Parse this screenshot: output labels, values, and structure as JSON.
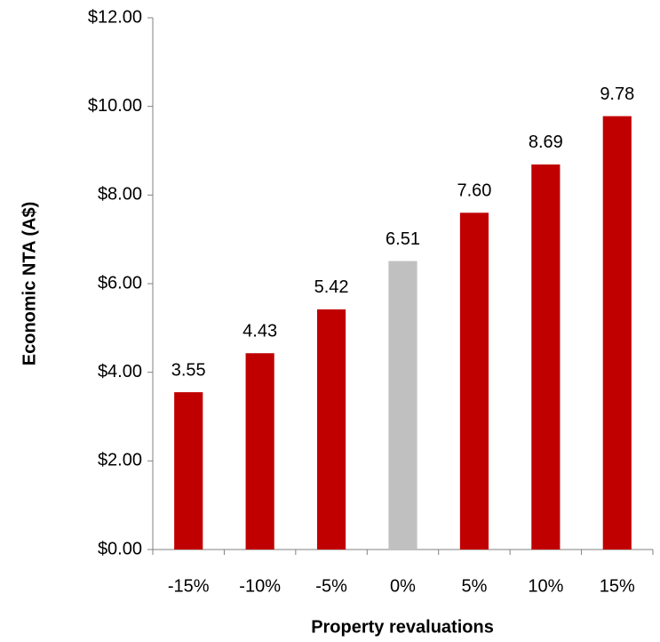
{
  "chart_data": {
    "type": "bar",
    "x_label": "Property revaluations",
    "y_label": "Economic NTA (A$)",
    "categories": [
      "-15%",
      "-10%",
      "-5%",
      "0%",
      "5%",
      "10%",
      "15%"
    ],
    "values": [
      3.55,
      4.43,
      5.42,
      6.51,
      7.6,
      8.69,
      9.78
    ],
    "value_labels": [
      "3.55",
      "4.43",
      "5.42",
      "6.51",
      "7.60",
      "8.69",
      "9.78"
    ],
    "colors": [
      "#c00000",
      "#c00000",
      "#c00000",
      "#c0c0c0",
      "#c00000",
      "#c00000",
      "#c00000"
    ],
    "ylim": [
      0,
      12
    ],
    "yticks": [
      {
        "value": 0,
        "label": "$0.00"
      },
      {
        "value": 2,
        "label": "$2.00"
      },
      {
        "value": 4,
        "label": "$4.00"
      },
      {
        "value": 6,
        "label": "$6.00"
      },
      {
        "value": 8,
        "label": "$8.00"
      },
      {
        "value": 10,
        "label": "$10.00"
      },
      {
        "value": 12,
        "label": "$12.00"
      }
    ],
    "grid": false
  }
}
